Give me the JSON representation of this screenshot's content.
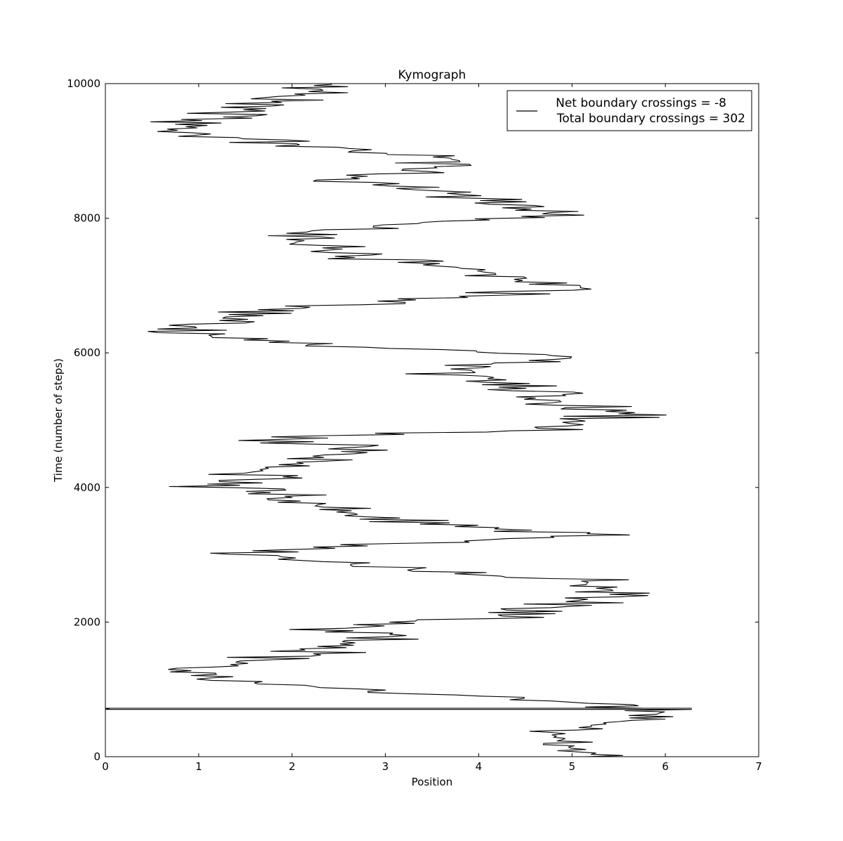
{
  "chart_data": {
    "type": "line",
    "title": "Kymograph",
    "xlabel": "Position",
    "ylabel": "Time (number of steps)",
    "xlim": [
      0,
      7
    ],
    "ylim": [
      0,
      10000
    ],
    "xticks": [
      "0",
      "1",
      "2",
      "3",
      "4",
      "5",
      "6",
      "7"
    ],
    "yticks": [
      "0",
      "2000",
      "4000",
      "6000",
      "8000",
      "10000"
    ],
    "wrap_position": 6.2832,
    "line_color": "#000000",
    "grid": false,
    "legend": {
      "placement": "upper right",
      "entries": [
        "Net boundary crossings = -8",
        "Total boundary crossings = 302"
      ]
    },
    "series": [
      {
        "approx_path": [
          [
            5.1,
            0
          ],
          [
            4.8,
            250
          ],
          [
            5.3,
            500
          ],
          [
            6.0,
            650
          ],
          [
            5.2,
            800
          ],
          [
            1.5,
            1100
          ],
          [
            0.7,
            1300
          ],
          [
            2.3,
            1550
          ],
          [
            3.0,
            1850
          ],
          [
            2.0,
            1900
          ],
          [
            4.5,
            2100
          ],
          [
            5.6,
            2400
          ],
          [
            4.8,
            2650
          ],
          [
            3.0,
            2800
          ],
          [
            1.5,
            3050
          ],
          [
            5.2,
            3300
          ],
          [
            2.6,
            3550
          ],
          [
            1.8,
            3900
          ],
          [
            1.2,
            4050
          ],
          [
            2.8,
            4550
          ],
          [
            2.0,
            4750
          ],
          [
            4.7,
            4850
          ],
          [
            5.5,
            5100
          ],
          [
            4.4,
            5450
          ],
          [
            3.7,
            5750
          ],
          [
            5.0,
            5950
          ],
          [
            1.8,
            6150
          ],
          [
            0.8,
            6350
          ],
          [
            1.8,
            6650
          ],
          [
            5.2,
            6950
          ],
          [
            2.8,
            7450
          ],
          [
            1.9,
            7800
          ],
          [
            5.0,
            8050
          ],
          [
            2.5,
            8600
          ],
          [
            4.0,
            8850
          ],
          [
            2.4,
            9050
          ],
          [
            0.8,
            9300
          ],
          [
            1.5,
            9650
          ],
          [
            2.5,
            9950
          ]
        ]
      }
    ]
  }
}
